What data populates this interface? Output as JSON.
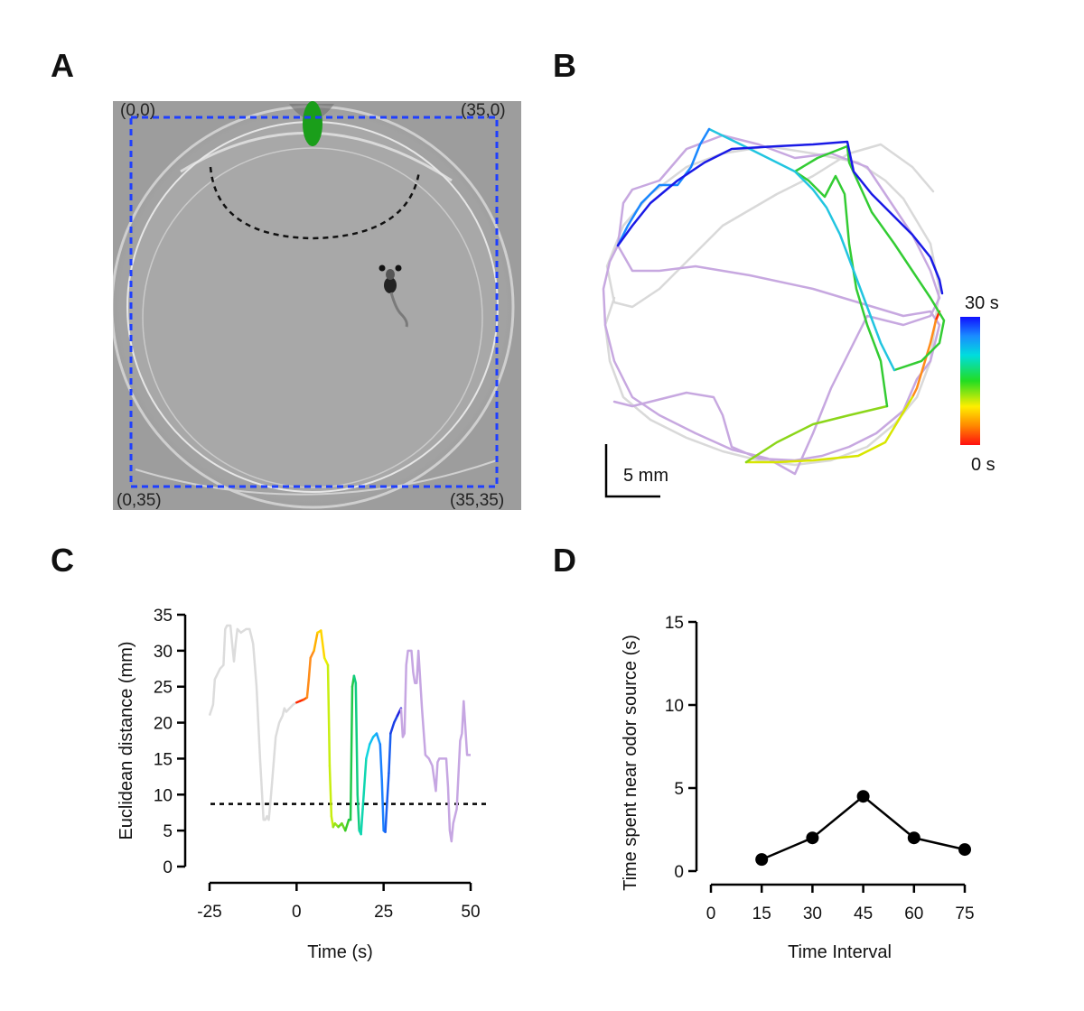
{
  "panels": {
    "a": {
      "letter": "A",
      "corners": {
        "tl": "(0,0)",
        "tr": "(35,0)",
        "bl": "(0,35)",
        "br": "(35,35)"
      }
    },
    "b": {
      "letter": "B",
      "scale_label": "5 mm",
      "colorbar_top": "30 s",
      "colorbar_bottom": "0 s"
    },
    "c": {
      "letter": "C"
    },
    "d": {
      "letter": "D"
    }
  },
  "colors": {
    "odor_source": "#1a9e1a",
    "arena_box": "#1f3fff",
    "early_track": "#d9d9d9",
    "late_track": "#c7a8e0",
    "line": "#000000"
  },
  "chart_data": [
    {
      "panel": "C",
      "type": "line",
      "xlabel": "Time (s)",
      "ylabel": "Euclidean distance (mm)",
      "xticks": [
        -25,
        0,
        25,
        50
      ],
      "yticks": [
        0,
        5,
        10,
        15,
        20,
        25,
        30,
        35
      ],
      "xlim": [
        -25,
        50
      ],
      "ylim": [
        0,
        35
      ],
      "threshold": 8.7,
      "series": [
        {
          "name": "before (grey)",
          "color": "#dcdcdc",
          "x": [
            -25,
            -24,
            -23.5,
            -22,
            -21,
            -20.5,
            -20,
            -19,
            -18.5,
            -18,
            -17.5,
            -17,
            -16,
            -14.5,
            -13.5,
            -12.5,
            -11.5,
            -10.5,
            -9.5,
            -9,
            -8.5,
            -8,
            -7.5,
            -7,
            -6.5,
            -6,
            -5,
            -4,
            -3.5,
            -3,
            -2,
            -1,
            0
          ],
          "y": [
            21,
            22.5,
            26,
            27.5,
            28,
            33,
            33.5,
            33.5,
            31,
            28.5,
            31,
            33,
            32.5,
            33,
            33,
            31,
            25,
            15,
            6.5,
            6.5,
            7,
            6.5,
            9,
            12,
            15,
            18,
            20,
            21,
            22,
            21.5,
            22,
            22.5,
            22.8
          ]
        },
        {
          "name": "0 to 30 s (rainbow)",
          "color": "gradient",
          "x": [
            0,
            1,
            2,
            3,
            3.5,
            4,
            5,
            6,
            7,
            8,
            8.5,
            9,
            9.5,
            10,
            10.5,
            11,
            12,
            13,
            14,
            15,
            15.5,
            16,
            16.5,
            17,
            17.5,
            18,
            18.5,
            19,
            20,
            21,
            22,
            23,
            24,
            24.5,
            25,
            25.5,
            26,
            26.5,
            27,
            28,
            29,
            30
          ],
          "y": [
            22.8,
            23,
            23.2,
            23.5,
            26,
            29,
            30,
            32.5,
            32.8,
            29,
            28.5,
            28,
            14,
            7,
            5.5,
            6,
            5.5,
            6,
            5,
            6.5,
            6.5,
            25,
            26.5,
            25.5,
            10,
            5,
            4.5,
            8,
            15,
            17,
            18,
            18.5,
            17,
            12,
            5,
            4.8,
            9,
            13,
            18.5,
            20,
            21,
            22
          ]
        },
        {
          "name": "after (purple)",
          "color": "#c6a6e2",
          "x": [
            30,
            30.5,
            31,
            31.5,
            32,
            33,
            33.5,
            34,
            34.5,
            35,
            36,
            37,
            38,
            39,
            40,
            40.5,
            41,
            42,
            43,
            43.5,
            44,
            44.5,
            45,
            46,
            47,
            47.5,
            48,
            49,
            50
          ],
          "y": [
            22,
            18,
            18.5,
            28,
            30,
            30,
            27,
            25.5,
            25.5,
            30,
            22,
            15.5,
            15,
            14,
            10.5,
            14.5,
            15,
            15,
            15,
            11,
            5,
            3.5,
            6,
            8,
            17.5,
            18.5,
            23,
            15.5,
            15.5
          ]
        }
      ]
    },
    {
      "panel": "D",
      "type": "line",
      "xlabel": "Time Interval",
      "ylabel": "Time spent near odor source (s)",
      "xticks": [
        0,
        15,
        30,
        45,
        60,
        75
      ],
      "yticks": [
        0,
        5,
        10,
        15
      ],
      "xlim": [
        0,
        75
      ],
      "ylim": [
        0,
        15
      ],
      "series": [
        {
          "name": "time near source",
          "x": [
            15,
            30,
            45,
            60,
            75
          ],
          "y": [
            0.7,
            2.0,
            4.5,
            2.0,
            1.3
          ]
        }
      ]
    }
  ]
}
